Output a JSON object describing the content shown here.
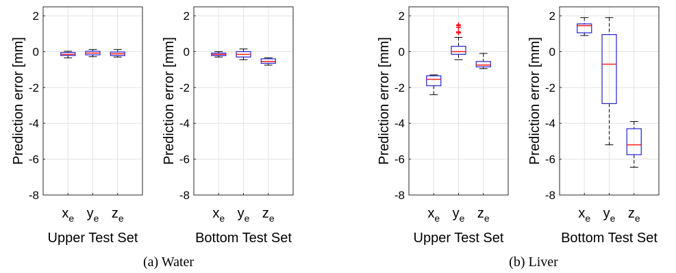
{
  "figure": {
    "captions": [
      "(a) Water",
      "(b) Liver"
    ]
  },
  "chart_data": [
    {
      "type": "box",
      "group": "(a) Water",
      "ylabel": "Prediction error [mm]",
      "xlabel": "Upper Test Set",
      "ylim": [
        -8,
        2.5
      ],
      "yticks": [
        2,
        0,
        -2,
        -4,
        -6,
        -8
      ],
      "grid": true,
      "categories": [
        {
          "base": "x",
          "sub": "e",
          "whisker_low": -0.35,
          "q1": -0.22,
          "median": -0.15,
          "q3": -0.05,
          "whisker_high": 0.02,
          "outliers": []
        },
        {
          "base": "y",
          "sub": "e",
          "whisker_low": -0.28,
          "q1": -0.18,
          "median": -0.08,
          "q3": 0.02,
          "whisker_high": 0.12,
          "outliers": []
        },
        {
          "base": "z",
          "sub": "e",
          "whisker_low": -0.3,
          "q1": -0.22,
          "median": -0.12,
          "q3": -0.02,
          "whisker_high": 0.12,
          "outliers": []
        }
      ]
    },
    {
      "type": "box",
      "group": "(a) Water",
      "ylabel": "Prediction error [mm]",
      "xlabel": "Bottom Test Set",
      "ylim": [
        -8,
        2.5
      ],
      "yticks": [
        2,
        0,
        -2,
        -4,
        -6,
        -8
      ],
      "grid": true,
      "categories": [
        {
          "base": "x",
          "sub": "e",
          "whisker_low": -0.3,
          "q1": -0.22,
          "median": -0.15,
          "q3": -0.08,
          "whisker_high": 0.0,
          "outliers": []
        },
        {
          "base": "y",
          "sub": "e",
          "whisker_low": -0.45,
          "q1": -0.3,
          "median": -0.15,
          "q3": 0.0,
          "whisker_high": 0.15,
          "outliers": []
        },
        {
          "base": "z",
          "sub": "e",
          "whisker_low": -0.75,
          "q1": -0.65,
          "median": -0.55,
          "q3": -0.4,
          "whisker_high": -0.35,
          "outliers": []
        }
      ]
    },
    {
      "type": "box",
      "group": "(b) Liver",
      "ylabel": "Prediction error [mm]",
      "xlabel": "Upper Test Set",
      "ylim": [
        -8,
        2.5
      ],
      "yticks": [
        2,
        0,
        -2,
        -4,
        -6,
        -8
      ],
      "grid": true,
      "categories": [
        {
          "base": "x",
          "sub": "e",
          "whisker_low": -2.4,
          "q1": -1.9,
          "median": -1.55,
          "q3": -1.35,
          "whisker_high": -1.3,
          "outliers": []
        },
        {
          "base": "y",
          "sub": "e",
          "whisker_low": -0.45,
          "q1": -0.15,
          "median": 0.0,
          "q3": 0.3,
          "whisker_high": 0.8,
          "outliers": [
            1.05,
            1.1,
            1.35,
            1.45,
            1.5
          ]
        },
        {
          "base": "z",
          "sub": "e",
          "whisker_low": -0.95,
          "q1": -0.85,
          "median": -0.75,
          "q3": -0.55,
          "whisker_high": -0.1,
          "outliers": []
        }
      ]
    },
    {
      "type": "box",
      "group": "(b) Liver",
      "ylabel": "Prediction error [mm]",
      "xlabel": "Bottom Test Set",
      "ylim": [
        -8,
        2.5
      ],
      "yticks": [
        2,
        0,
        -2,
        -4,
        -6,
        -8
      ],
      "grid": true,
      "categories": [
        {
          "base": "x",
          "sub": "e",
          "whisker_low": 0.9,
          "q1": 1.05,
          "median": 1.45,
          "q3": 1.55,
          "whisker_high": 1.9,
          "outliers": []
        },
        {
          "base": "y",
          "sub": "e",
          "whisker_low": -5.2,
          "q1": -2.9,
          "median": -0.7,
          "q3": 0.95,
          "whisker_high": 1.9,
          "outliers": []
        },
        {
          "base": "z",
          "sub": "e",
          "whisker_low": -6.45,
          "q1": -5.75,
          "median": -5.2,
          "q3": -4.3,
          "whisker_high": -3.9,
          "outliers": []
        }
      ]
    }
  ]
}
